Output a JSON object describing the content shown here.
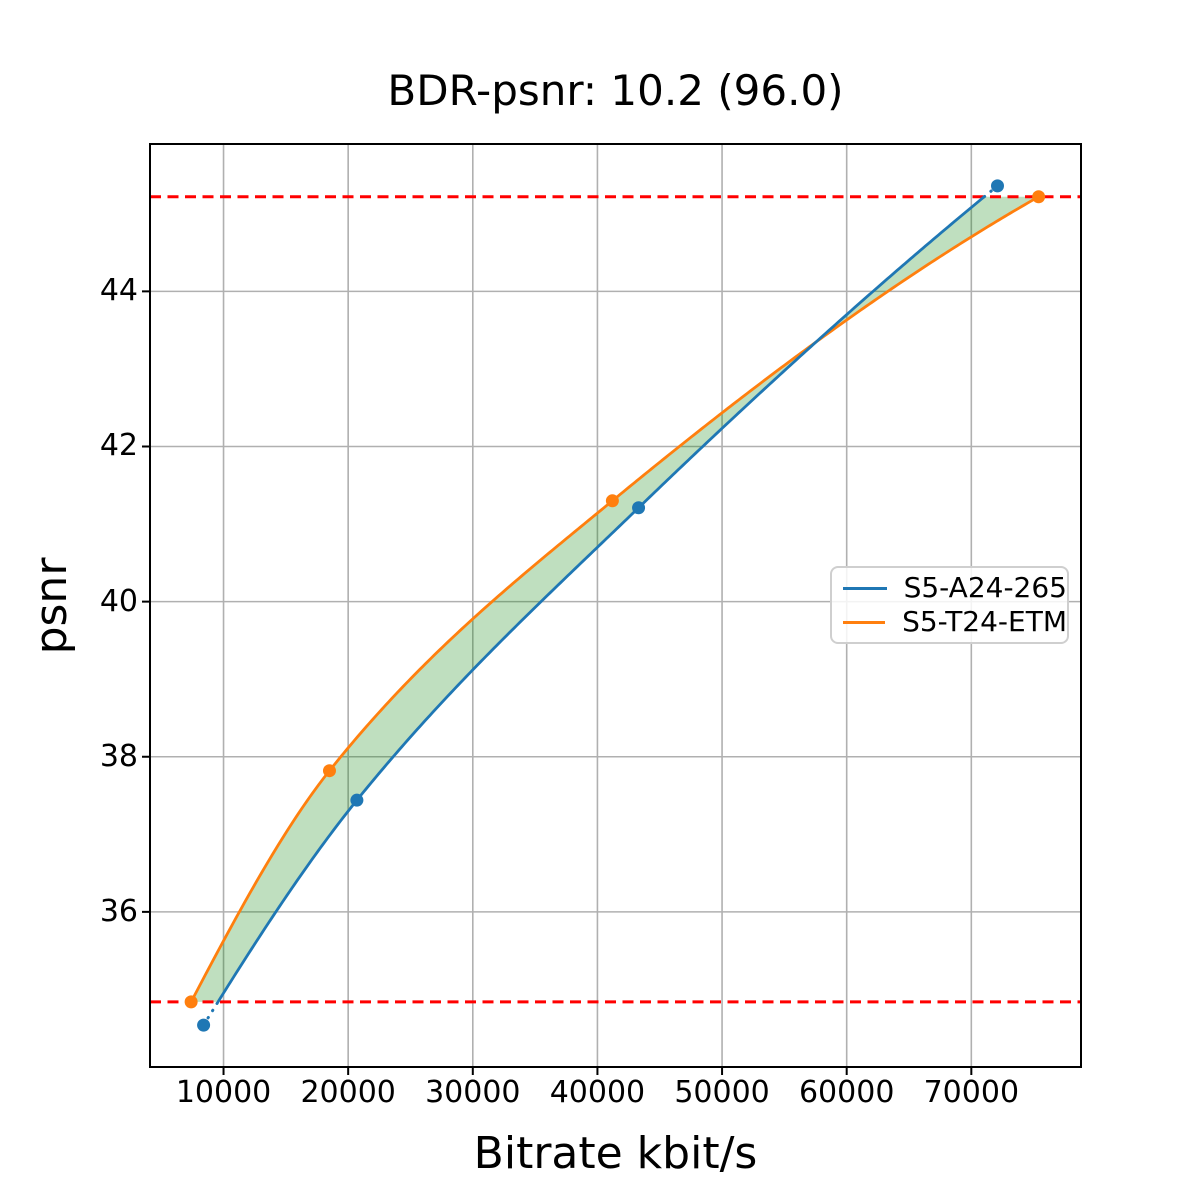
{
  "chart_data": {
    "type": "line",
    "title": "BDR-psnr: 10.2 (96.0)",
    "xlabel": "Bitrate kbit/s",
    "ylabel": "psnr",
    "xlim": [
      4100,
      78800
    ],
    "ylim": [
      34.0,
      45.9
    ],
    "x_ticks": [
      10000,
      20000,
      30000,
      40000,
      50000,
      60000,
      70000
    ],
    "y_ticks": [
      36,
      38,
      40,
      42,
      44
    ],
    "grid": true,
    "grid_color": "#b0b0b0",
    "legend_position": "center right",
    "series": [
      {
        "name": "S5-A24-265",
        "color": "#1f77b4",
        "marker": "circle",
        "x": [
          8400,
          20700,
          43300,
          72100
        ],
        "y": [
          34.54,
          37.44,
          41.21,
          45.36
        ],
        "clip_to_overlap": true
      },
      {
        "name": "S5-T24-ETM",
        "color": "#ff7f0e",
        "marker": "circle",
        "x": [
          7400,
          18500,
          41200,
          75400
        ],
        "y": [
          34.84,
          37.82,
          41.3,
          45.22
        ],
        "clip_to_overlap": false
      }
    ],
    "overlap_lines": {
      "color": "#ff0000",
      "style": "dashed",
      "y_min": 34.84,
      "y_max": 45.22
    },
    "fill_between": {
      "color": "rgba(0,128,0,0.25)"
    }
  }
}
